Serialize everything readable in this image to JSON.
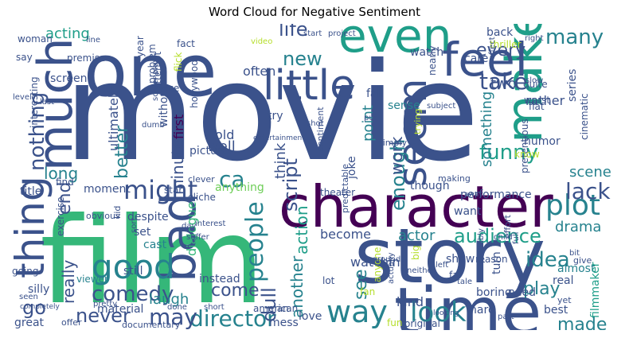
{
  "title": "Word Cloud for Negative Sentiment",
  "palette": {
    "dark_purple": "#440154",
    "purple": "#482878",
    "indigo": "#3e4a89",
    "blue": "#31688e",
    "steel": "#3b528b",
    "teal": "#26828e",
    "teal_green": "#1f9e89",
    "green": "#35b779",
    "light_green": "#6ece58",
    "lime": "#b5de2b",
    "yellow": "#d8e219"
  },
  "words": [
    {
      "text": "movie",
      "color": "#3b528b"
    },
    {
      "text": "film",
      "color": "#35b779"
    },
    {
      "text": "one",
      "color": "#3b528b"
    },
    {
      "text": "story",
      "color": "#3b528b"
    },
    {
      "text": "character",
      "color": "#440154"
    },
    {
      "text": "time",
      "color": "#3b528b"
    },
    {
      "text": "even",
      "color": "#1f9e89"
    },
    {
      "text": "make",
      "color": "#1f9e89"
    },
    {
      "text": "feel",
      "color": "#3b528b"
    },
    {
      "text": "much",
      "color": "#3b528b"
    },
    {
      "text": "little",
      "color": "#3b528b"
    },
    {
      "text": "bad",
      "color": "#3b528b"
    },
    {
      "text": "seem",
      "color": "#3b528b"
    },
    {
      "text": "thing",
      "color": "#3b528b"
    },
    {
      "text": "good",
      "color": "#26828e"
    },
    {
      "text": "plot",
      "color": "#26828e"
    },
    {
      "text": "way",
      "color": "#26828e"
    },
    {
      "text": "look",
      "color": "#26828e"
    },
    {
      "text": "comedy",
      "color": "#3b528b"
    },
    {
      "text": "director",
      "color": "#26828e"
    },
    {
      "text": "people",
      "color": "#26828e"
    },
    {
      "text": "audience",
      "color": "#1f9e89"
    },
    {
      "text": "lack",
      "color": "#3b528b"
    },
    {
      "text": "funny",
      "color": "#1f9e89"
    },
    {
      "text": "many",
      "color": "#26828e"
    },
    {
      "text": "take",
      "color": "#3b528b"
    },
    {
      "text": "might",
      "color": "#3b528b"
    },
    {
      "text": "nothing",
      "color": "#3b528b"
    },
    {
      "text": "script",
      "color": "#3b528b"
    },
    {
      "text": "enough",
      "color": "#26828e"
    },
    {
      "text": "life",
      "color": "#3b528b"
    },
    {
      "text": "new",
      "color": "#26828e"
    },
    {
      "text": "long",
      "color": "#26828e"
    },
    {
      "text": "idea",
      "color": "#26828e"
    },
    {
      "text": "made",
      "color": "#26828e"
    },
    {
      "text": "never",
      "color": "#3b528b"
    },
    {
      "text": "may",
      "color": "#3b528b"
    },
    {
      "text": "ca",
      "color": "#26828e"
    },
    {
      "text": "end",
      "color": "#3b528b"
    },
    {
      "text": "better",
      "color": "#26828e"
    },
    {
      "text": "really",
      "color": "#3b528b"
    },
    {
      "text": "minute",
      "color": "#3b528b"
    },
    {
      "text": "dull",
      "color": "#3b528b"
    },
    {
      "text": "another",
      "color": "#26828e"
    },
    {
      "text": "action",
      "color": "#1f9e89"
    },
    {
      "text": "every",
      "color": "#3b528b"
    },
    {
      "text": "scene",
      "color": "#26828e"
    },
    {
      "text": "work",
      "color": "#3b528b"
    },
    {
      "text": "something",
      "color": "#26828e"
    },
    {
      "text": "acting",
      "color": "#1f9e89"
    },
    {
      "text": "come",
      "color": "#3b528b"
    },
    {
      "text": "see",
      "color": "#26828e"
    },
    {
      "text": "play",
      "color": "#26828e"
    },
    {
      "text": "laugh",
      "color": "#26828e"
    },
    {
      "text": "go",
      "color": "#3b528b"
    },
    {
      "text": "ultimately",
      "color": "#3b528b"
    },
    {
      "text": "drama",
      "color": "#26828e"
    },
    {
      "text": "two",
      "color": "#3b528b"
    },
    {
      "text": "actor",
      "color": "#26828e"
    },
    {
      "text": "point",
      "color": "#26828e"
    },
    {
      "text": "become",
      "color": "#3b528b"
    },
    {
      "text": "watching",
      "color": "#3b528b"
    },
    {
      "text": "kind",
      "color": "#3b528b"
    },
    {
      "text": "well",
      "color": "#3b528b"
    },
    {
      "text": "think",
      "color": "#3b528b"
    },
    {
      "text": "often",
      "color": "#3b528b"
    },
    {
      "text": "watch",
      "color": "#3b528b"
    },
    {
      "text": "care",
      "color": "#3b528b"
    },
    {
      "text": "first",
      "color": "#440154"
    },
    {
      "text": "without",
      "color": "#3b528b"
    },
    {
      "text": "picture",
      "color": "#3b528b"
    },
    {
      "text": "old",
      "color": "#3b528b"
    },
    {
      "text": "try",
      "color": "#3b528b"
    },
    {
      "text": "fall",
      "color": "#3b528b"
    },
    {
      "text": "sense",
      "color": "#26828e"
    },
    {
      "text": "humor",
      "color": "#3b528b"
    },
    {
      "text": "rather",
      "color": "#3b528b"
    },
    {
      "text": "series",
      "color": "#3b528b"
    },
    {
      "text": "dialogue",
      "color": "#35b779"
    },
    {
      "text": "instead",
      "color": "#3b528b"
    },
    {
      "text": "cast",
      "color": "#26828e"
    },
    {
      "text": "still",
      "color": "#3b528b"
    },
    {
      "text": "set",
      "color": "#3b528b"
    },
    {
      "text": "despite",
      "color": "#3b528b"
    },
    {
      "text": "moment",
      "color": "#3b528b"
    },
    {
      "text": "title",
      "color": "#3b528b"
    },
    {
      "text": "find",
      "color": "#3b528b"
    },
    {
      "text": "exercise",
      "color": "#3b528b"
    },
    {
      "text": "silly",
      "color": "#3b528b"
    },
    {
      "text": "great",
      "color": "#3b528b"
    },
    {
      "text": "going",
      "color": "#3b528b"
    },
    {
      "text": "viewer",
      "color": "#26828e"
    },
    {
      "text": "material",
      "color": "#3b528b"
    },
    {
      "text": "anything",
      "color": "#6ece58"
    },
    {
      "text": "joke",
      "color": "#3b528b"
    },
    {
      "text": "though",
      "color": "#3b528b"
    },
    {
      "text": "performance",
      "color": "#3b528b"
    },
    {
      "text": "want",
      "color": "#3b528b"
    },
    {
      "text": "show",
      "color": "#3b528b"
    },
    {
      "text": "turn",
      "color": "#3b528b"
    },
    {
      "text": "almost",
      "color": "#26828e"
    },
    {
      "text": "real",
      "color": "#3b528b"
    },
    {
      "text": "best",
      "color": "#3b528b"
    },
    {
      "text": "boring",
      "color": "#3b528b"
    },
    {
      "text": "need",
      "color": "#3b528b"
    },
    {
      "text": "hard",
      "color": "#3b528b"
    },
    {
      "text": "filmmaker",
      "color": "#1f9e89"
    },
    {
      "text": "love",
      "color": "#3b528b"
    },
    {
      "text": "mess",
      "color": "#3b528b"
    },
    {
      "text": "year",
      "color": "#3b528b"
    },
    {
      "text": "screen",
      "color": "#3b528b"
    },
    {
      "text": "premise",
      "color": "#3b528b"
    },
    {
      "text": "problem",
      "color": "#3b528b"
    },
    {
      "text": "attempt",
      "color": "#3b528b"
    },
    {
      "text": "hollywood",
      "color": "#3b528b"
    },
    {
      "text": "interesting",
      "color": "#3b528b"
    },
    {
      "text": "woman",
      "color": "#3b528b"
    },
    {
      "text": "say",
      "color": "#3b528b"
    },
    {
      "text": "fact",
      "color": "#3b528b"
    },
    {
      "text": "piece",
      "color": "#3b528b"
    },
    {
      "text": "nearly",
      "color": "#3b528b"
    },
    {
      "text": "thriller",
      "color": "#b5de2b"
    },
    {
      "text": "back",
      "color": "#3b528b"
    },
    {
      "text": "worst",
      "color": "#3b528b"
    },
    {
      "text": "quite",
      "color": "#3b528b"
    },
    {
      "text": "flat",
      "color": "#3b528b"
    },
    {
      "text": "pretentious",
      "color": "#3b528b"
    },
    {
      "text": "cinematic",
      "color": "#3b528b"
    },
    {
      "text": "know",
      "color": "#b5de2b"
    },
    {
      "text": "cliche",
      "color": "#3b528b"
    },
    {
      "text": "star",
      "color": "#3b528b"
    },
    {
      "text": "clever",
      "color": "#3b528b"
    },
    {
      "text": "simply",
      "color": "#3b528b"
    },
    {
      "text": "making",
      "color": "#3b528b"
    },
    {
      "text": "trying",
      "color": "#b5de2b"
    },
    {
      "text": "anyone",
      "color": "#b5de2b"
    },
    {
      "text": "predictable",
      "color": "#3b528b"
    },
    {
      "text": "far",
      "color": "#3b528b"
    },
    {
      "text": "reason",
      "color": "#3b528b"
    },
    {
      "text": "fan",
      "color": "#b5de2b"
    },
    {
      "text": "effort",
      "color": "#3b528b"
    },
    {
      "text": "give",
      "color": "#3b528b"
    },
    {
      "text": "yet",
      "color": "#3b528b"
    },
    {
      "text": "original",
      "color": "#3b528b"
    },
    {
      "text": "fun",
      "color": "#b5de2b"
    },
    {
      "text": "american",
      "color": "#3b528b"
    },
    {
      "text": "man",
      "color": "#3b528b"
    },
    {
      "text": "lot",
      "color": "#3b528b"
    },
    {
      "text": "obvious",
      "color": "#3b528b"
    },
    {
      "text": "kid",
      "color": "#3b528b"
    },
    {
      "text": "sort",
      "color": "#3b528b"
    },
    {
      "text": "pretty",
      "color": "#3b528b"
    },
    {
      "text": "seen",
      "color": "#3b528b"
    },
    {
      "text": "offer",
      "color": "#3b528b"
    },
    {
      "text": "documentary",
      "color": "#3b528b"
    },
    {
      "text": "done",
      "color": "#3b528b"
    },
    {
      "text": "short",
      "color": "#3b528b"
    },
    {
      "text": "tale",
      "color": "#3b528b"
    },
    {
      "text": "big",
      "color": "#b5de2b"
    },
    {
      "text": "probably",
      "color": "#3b528b"
    },
    {
      "text": "neither",
      "color": "#3b528b"
    },
    {
      "text": "actually",
      "color": "#3b528b"
    },
    {
      "text": "around",
      "color": "#3b528b"
    },
    {
      "text": "left",
      "color": "#3b528b"
    },
    {
      "text": "full",
      "color": "#3b528b"
    },
    {
      "text": "child",
      "color": "#3b528b"
    },
    {
      "text": "interest",
      "color": "#3b528b"
    },
    {
      "text": "suffer",
      "color": "#3b528b"
    },
    {
      "text": "day",
      "color": "#3b528b"
    },
    {
      "text": "screenplay",
      "color": "#3b528b"
    },
    {
      "text": "dumb",
      "color": "#3b528b"
    },
    {
      "text": "last",
      "color": "#3b528b"
    },
    {
      "text": "level",
      "color": "#3b528b"
    },
    {
      "text": "line",
      "color": "#3b528b"
    },
    {
      "text": "start",
      "color": "#3b528b"
    },
    {
      "text": "project",
      "color": "#3b528b"
    },
    {
      "text": "video",
      "color": "#b5de2b"
    },
    {
      "text": "shot",
      "color": "#3b528b"
    },
    {
      "text": "entertainment",
      "color": "#3b528b"
    },
    {
      "text": "put",
      "color": "#3b528b"
    },
    {
      "text": "subject",
      "color": "#3b528b"
    },
    {
      "text": "slow",
      "color": "#3b528b"
    },
    {
      "text": "effect",
      "color": "#3b528b"
    },
    {
      "text": "right",
      "color": "#3b528b"
    },
    {
      "text": "bit",
      "color": "#3b528b"
    },
    {
      "text": "away",
      "color": "#3b528b"
    },
    {
      "text": "part",
      "color": "#3b528b"
    },
    {
      "text": "looking",
      "color": "#3b528b"
    },
    {
      "text": "flick",
      "color": "#b5de2b"
    },
    {
      "text": "theater",
      "color": "#3b528b"
    },
    {
      "text": "sentiment",
      "color": "#3b528b"
    },
    {
      "text": "completely",
      "color": "#3b528b"
    }
  ]
}
